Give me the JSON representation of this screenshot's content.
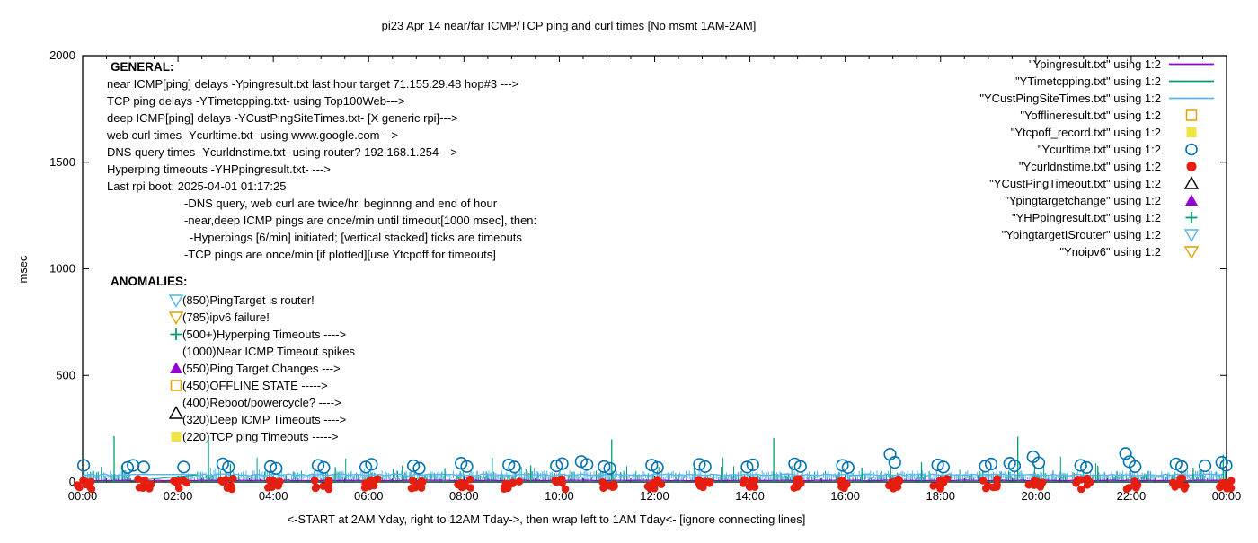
{
  "colors": {
    "purple": "#9400D3",
    "teal": "#009E73",
    "lightblue": "#56B4E9",
    "orange": "#E69F00",
    "yellow": "#F0E442",
    "blue": "#0072B2",
    "red": "#E51E10",
    "black": "#000000",
    "background": "#FFFFFF"
  },
  "chart_data": {
    "type": "line",
    "title": "pi23 Apr 14  near/far ICMP/TCP ping and curl times [No msmt 1AM-2AM]",
    "xlabel": "<-START at 2AM Yday, right to 12AM Tday->, then wrap left to 1AM Tday<- [ignore connecting lines]",
    "ylabel": "msec",
    "ylim": [
      0,
      2000
    ],
    "yticks": [
      0,
      500,
      1000,
      1500,
      2000
    ],
    "xlim_hours": [
      0,
      24
    ],
    "xtick_labels": [
      "00:00",
      "02:00",
      "04:00",
      "06:00",
      "08:00",
      "10:00",
      "12:00",
      "14:00",
      "16:00",
      "18:00",
      "20:00",
      "22:00",
      "00:00"
    ],
    "xtick_interval_hours": 2,
    "xtick_minor_interval_hours": 0.5,
    "grid": false,
    "legend_position": "top-right",
    "no_measurement_gap_hours": [
      1.02,
      2.05
    ],
    "legend": [
      {
        "label": "\"Ypingresult.txt\" using 1:2",
        "marker": "line",
        "color": "#9400D3"
      },
      {
        "label": "\"YTimetcpping.txt\" using 1:2",
        "marker": "line",
        "color": "#009E73"
      },
      {
        "label": "\"YCustPingSiteTimes.txt\" using 1:2",
        "marker": "line",
        "color": "#56B4E9"
      },
      {
        "label": "\"Yofflineresult.txt\" using 1:2",
        "marker": "square-open",
        "color": "#E69F00"
      },
      {
        "label": "\"Ytcpoff_record.txt\" using 1:2",
        "marker": "square-filled",
        "color": "#F0E442"
      },
      {
        "label": "\"Ycurltime.txt\" using 1:2",
        "marker": "circle-open",
        "color": "#0072B2"
      },
      {
        "label": "\"Ycurldnstime.txt\" using 1:2",
        "marker": "circle-filled",
        "color": "#E51E10"
      },
      {
        "label": "\"YCustPingTimeout.txt\" using 1:2",
        "marker": "triangle-up-open",
        "color": "#000000"
      },
      {
        "label": "\"Ypingtargetchange\" using 1:2",
        "marker": "triangle-up-filled",
        "color": "#9400D3"
      },
      {
        "label": "\"YHPpingresult.txt\" using 1:2",
        "marker": "plus",
        "color": "#009E73"
      },
      {
        "label": "\"YpingtargetISrouter\" using 1:2",
        "marker": "triangle-down-open",
        "color": "#56B4E9"
      },
      {
        "label": "\"Ynoipv6\" using 1:2",
        "marker": "triangle-down-open",
        "color": "#E69F00"
      }
    ],
    "near_icmp_line": {
      "color": "#9400D3",
      "baseline_msec": 7
    },
    "tcp_ping_noise": {
      "color": "#009E73",
      "range_msec": [
        0,
        55
      ],
      "occasional_max_msec": 110
    },
    "deep_icmp_noise": {
      "color": "#56B4E9",
      "band_msec": [
        10,
        55
      ],
      "baseline_msec": 33
    },
    "gap_connector": {
      "from": {
        "h": 1.02,
        "msec": 4
      },
      "to": {
        "h": 2.4,
        "msec": 33
      }
    },
    "timeout_spikes": [
      {
        "h": 0.66,
        "msec": 215
      },
      {
        "h": 2.64,
        "msec": 218
      },
      {
        "h": 3.1,
        "msec": 85
      },
      {
        "h": 5.3,
        "msec": 70
      },
      {
        "h": 7.6,
        "msec": 65
      },
      {
        "h": 9.4,
        "msec": 78
      },
      {
        "h": 11.1,
        "msec": 200
      },
      {
        "h": 13.4,
        "msec": 72
      },
      {
        "h": 14.5,
        "msec": 207
      },
      {
        "h": 16.35,
        "msec": 68
      },
      {
        "h": 17.6,
        "msec": 92
      },
      {
        "h": 19.62,
        "msec": 213
      },
      {
        "h": 21.3,
        "msec": 76
      },
      {
        "h": 23.3,
        "msec": 68
      },
      {
        "h": 23.93,
        "msec": 128
      }
    ],
    "web_curl_points": [
      {
        "h": 0.02,
        "msec": 78
      },
      {
        "h": 0.94,
        "msec": 68
      },
      {
        "h": 1.06,
        "msec": 78
      },
      {
        "h": 1.28,
        "msec": 70
      },
      {
        "h": 2.12,
        "msec": 70
      },
      {
        "h": 2.94,
        "msec": 85
      },
      {
        "h": 3.06,
        "msec": 70
      },
      {
        "h": 3.94,
        "msec": 72
      },
      {
        "h": 4.06,
        "msec": 64
      },
      {
        "h": 4.94,
        "msec": 78
      },
      {
        "h": 5.06,
        "msec": 68
      },
      {
        "h": 5.94,
        "msec": 70
      },
      {
        "h": 6.06,
        "msec": 83
      },
      {
        "h": 6.94,
        "msec": 76
      },
      {
        "h": 7.06,
        "msec": 65
      },
      {
        "h": 7.94,
        "msec": 88
      },
      {
        "h": 8.06,
        "msec": 73
      },
      {
        "h": 8.94,
        "msec": 80
      },
      {
        "h": 9.06,
        "msec": 70
      },
      {
        "h": 9.94,
        "msec": 76
      },
      {
        "h": 10.06,
        "msec": 86
      },
      {
        "h": 10.46,
        "msec": 96
      },
      {
        "h": 10.58,
        "msec": 82
      },
      {
        "h": 10.94,
        "msec": 72
      },
      {
        "h": 11.06,
        "msec": 64
      },
      {
        "h": 11.94,
        "msec": 79
      },
      {
        "h": 12.06,
        "msec": 68
      },
      {
        "h": 12.94,
        "msec": 83
      },
      {
        "h": 13.06,
        "msec": 72
      },
      {
        "h": 13.94,
        "msec": 70
      },
      {
        "h": 14.06,
        "msec": 81
      },
      {
        "h": 14.94,
        "msec": 85
      },
      {
        "h": 15.06,
        "msec": 73
      },
      {
        "h": 15.94,
        "msec": 78
      },
      {
        "h": 16.06,
        "msec": 68
      },
      {
        "h": 16.94,
        "msec": 130
      },
      {
        "h": 17.04,
        "msec": 92
      },
      {
        "h": 17.94,
        "msec": 80
      },
      {
        "h": 18.06,
        "msec": 70
      },
      {
        "h": 18.94,
        "msec": 74
      },
      {
        "h": 19.06,
        "msec": 84
      },
      {
        "h": 19.45,
        "msec": 88
      },
      {
        "h": 19.55,
        "msec": 76
      },
      {
        "h": 19.94,
        "msec": 118
      },
      {
        "h": 20.06,
        "msec": 90
      },
      {
        "h": 20.94,
        "msec": 78
      },
      {
        "h": 21.06,
        "msec": 68
      },
      {
        "h": 21.88,
        "msec": 133
      },
      {
        "h": 21.96,
        "msec": 95
      },
      {
        "h": 22.08,
        "msec": 72
      },
      {
        "h": 22.94,
        "msec": 85
      },
      {
        "h": 23.06,
        "msec": 72
      },
      {
        "h": 23.55,
        "msec": 76
      },
      {
        "h": 23.9,
        "msec": 92
      },
      {
        "h": 23.99,
        "msec": 78
      }
    ],
    "dns_query_cluster_hours": [
      0.03,
      1.3,
      2.03,
      3.0,
      4.0,
      5.02,
      6.05,
      7.0,
      8.02,
      9.0,
      10.0,
      11.0,
      12.0,
      13.0,
      14.0,
      15.0,
      16.0,
      17.0,
      18.0,
      19.05,
      20.0,
      21.0,
      22.0,
      23.0,
      23.96
    ],
    "annotations": {
      "general": {
        "heading": "GENERAL:",
        "lines": [
          {
            "indent": 0,
            "text": "near ICMP[ping] delays -Ypingresult.txt last hour target 71.155.29.48 hop#3 --->"
          },
          {
            "indent": 0,
            "text": "TCP ping delays -YTimetcpping.txt- using Top100Web--->"
          },
          {
            "indent": 0,
            "text": "deep ICMP[ping] delays -YCustPingSiteTimes.txt- [X generic rpi]--->"
          },
          {
            "indent": 0,
            "text": "web curl times -Ycurltime.txt- using www.google.com--->"
          },
          {
            "indent": 0,
            "text": "DNS query times -Ycurldnstime.txt- using router? 192.168.1.254--->"
          },
          {
            "indent": 0,
            "text": "Hyperping timeouts -YHPpingresult.txt- --->"
          },
          {
            "indent": 0,
            "text": "Last rpi boot: 2025-04-01 01:17:25"
          },
          {
            "indent": 1,
            "text": "-DNS query, web curl are twice/hr, beginnng and end of hour"
          },
          {
            "indent": 1,
            "text": "-near,deep ICMP pings are once/min until timeout[1000 msec], then:"
          },
          {
            "indent": 2,
            "text": "-Hyperpings [6/min] initiated; [vertical stacked] ticks are timeouts"
          },
          {
            "indent": 1,
            "text": "-TCP pings are once/min [if plotted][use Ytcpoff for timeouts]"
          }
        ]
      },
      "anomalies": {
        "heading": "ANOMALIES:",
        "items": [
          {
            "marker": "triangle-down-open",
            "color": "#56B4E9",
            "text": "(850)PingTarget is router!"
          },
          {
            "marker": "triangle-down-open",
            "color": "#E69F00",
            "text": "(785)ipv6 failure!"
          },
          {
            "marker": "plus",
            "color": "#009E73",
            "text": "(500+)Hyperping Timeouts ---->"
          },
          {
            "marker": null,
            "color": null,
            "text": "(1000)Near ICMP Timeout spikes"
          },
          {
            "marker": "triangle-up-filled",
            "color": "#9400D3",
            "text": "(550)Ping Target Changes --->"
          },
          {
            "marker": "square-open",
            "color": "#E69F00",
            "text": "(450)OFFLINE STATE ----->"
          },
          {
            "marker": null,
            "color": null,
            "text": "(400)Reboot/powercycle? ---->"
          },
          {
            "marker": "triangle-up-open",
            "color": "#000000",
            "text": "(320)Deep ICMP Timeouts ---->",
            "marker_dy": -7
          },
          {
            "marker": "square-filled",
            "color": "#F0E442",
            "text": "(220)TCP ping Timeouts ----->"
          }
        ]
      }
    }
  }
}
